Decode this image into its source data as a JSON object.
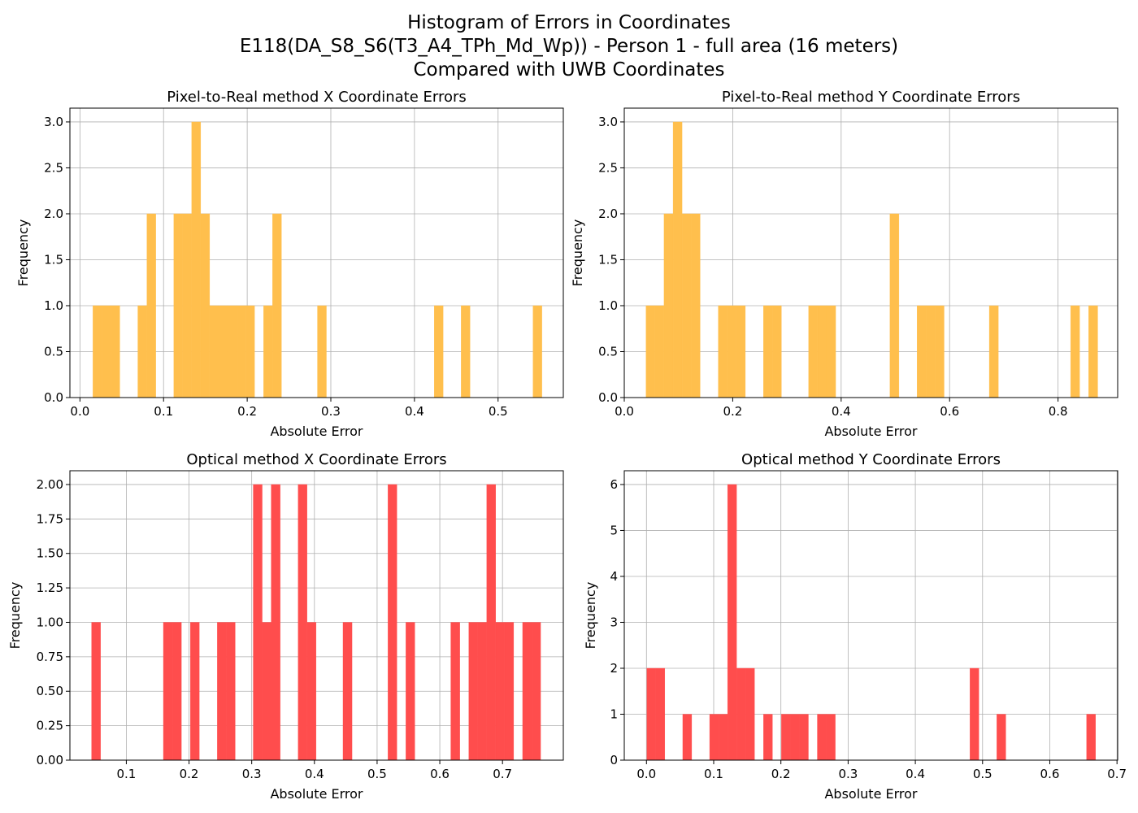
{
  "figure": {
    "title_lines": [
      "Histogram of Errors in Coordinates",
      "E118(DA_S8_S6(T3_A4_TPh_Md_Wp)) - Person 1 - full area (16 meters)",
      "Compared with UWB Coordinates"
    ]
  },
  "chart_data": [
    {
      "type": "bar",
      "title": "Pixel-to-Real method X Coordinate Errors",
      "xlabel": "Absolute Error",
      "ylabel": "Frequency",
      "color": "#FFBF4D",
      "xlim": [
        -0.012,
        0.578
      ],
      "ylim": [
        0,
        3.15
      ],
      "xticks": [
        0.0,
        0.1,
        0.2,
        0.3,
        0.4,
        0.5
      ],
      "xtick_labels": [
        "0.0",
        "0.1",
        "0.2",
        "0.3",
        "0.4",
        "0.5"
      ],
      "yticks": [
        0,
        0.5,
        1.0,
        1.5,
        2.0,
        2.5,
        3.0
      ],
      "ytick_labels": [
        "0.0",
        "0.5",
        "1.0",
        "1.5",
        "2.0",
        "2.5",
        "3.0"
      ],
      "grid": true,
      "bin_edges": [
        0.0155,
        0.0263,
        0.037,
        0.0477,
        0.0585,
        0.0692,
        0.08,
        0.0907,
        0.1014,
        0.1122,
        0.1229,
        0.1336,
        0.1444,
        0.1551,
        0.1659,
        0.1766,
        0.1873,
        0.1981,
        0.2088,
        0.2196,
        0.2303,
        0.241,
        0.2518,
        0.2625,
        0.2732,
        0.284,
        0.2947,
        0.3055,
        0.3162,
        0.3269,
        0.3377,
        0.3484,
        0.3592,
        0.3699,
        0.3806,
        0.3914,
        0.4021,
        0.4128,
        0.4236,
        0.4343,
        0.4451,
        0.4558,
        0.4665,
        0.4773,
        0.488,
        0.4987,
        0.5095,
        0.5202,
        0.531,
        0.5417,
        0.5524
      ],
      "counts": [
        1,
        1,
        1,
        0,
        0,
        1,
        2,
        0,
        0,
        2,
        2,
        3,
        2,
        1,
        1,
        1,
        1,
        1,
        0,
        1,
        2,
        0,
        0,
        0,
        0,
        1,
        0,
        0,
        0,
        0,
        0,
        0,
        0,
        0,
        0,
        0,
        0,
        0,
        1,
        0,
        0,
        1,
        0,
        0,
        0,
        0,
        0,
        0,
        0,
        1
      ]
    },
    {
      "type": "bar",
      "title": "Pixel-to-Real method Y Coordinate Errors",
      "xlabel": "Absolute Error",
      "ylabel": "Frequency",
      "color": "#FFBF4D",
      "xlim": [
        0.0,
        0.91
      ],
      "ylim": [
        0,
        3.15
      ],
      "xticks": [
        0.0,
        0.2,
        0.4,
        0.6,
        0.8
      ],
      "xtick_labels": [
        "0.0",
        "0.2",
        "0.4",
        "0.6",
        "0.8"
      ],
      "yticks": [
        0,
        0.5,
        1.0,
        1.5,
        2.0,
        2.5,
        3.0
      ],
      "ytick_labels": [
        "0.0",
        "0.5",
        "1.0",
        "1.5",
        "2.0",
        "2.5",
        "3.0"
      ],
      "grid": true,
      "bin_edges": [
        0.04,
        0.0567,
        0.0733,
        0.09,
        0.1066,
        0.1233,
        0.14,
        0.1566,
        0.1733,
        0.19,
        0.2066,
        0.2233,
        0.2399,
        0.2566,
        0.2733,
        0.2899,
        0.3066,
        0.3233,
        0.3399,
        0.3566,
        0.3733,
        0.3899,
        0.4066,
        0.4233,
        0.4399,
        0.4566,
        0.4732,
        0.4899,
        0.5066,
        0.5232,
        0.5399,
        0.5566,
        0.5732,
        0.5899,
        0.6066,
        0.6232,
        0.6399,
        0.6565,
        0.6732,
        0.6899,
        0.7065,
        0.7232,
        0.7399,
        0.7565,
        0.7732,
        0.7898,
        0.8065,
        0.8232,
        0.8398,
        0.8565,
        0.8732
      ],
      "counts": [
        1,
        1,
        2,
        3,
        2,
        2,
        0,
        0,
        1,
        1,
        1,
        0,
        0,
        1,
        1,
        0,
        0,
        0,
        1,
        1,
        1,
        0,
        0,
        0,
        0,
        0,
        0,
        2,
        0,
        0,
        1,
        1,
        1,
        0,
        0,
        0,
        0,
        0,
        1,
        0,
        0,
        0,
        0,
        0,
        0,
        0,
        0,
        1,
        0,
        1
      ]
    },
    {
      "type": "bar",
      "title": "Optical method X Coordinate Errors",
      "xlabel": "Absolute Error",
      "ylabel": "Frequency",
      "color": "#FF4D4D",
      "xlim": [
        0.01,
        0.797
      ],
      "ylim": [
        0,
        2.1
      ],
      "xticks": [
        0.1,
        0.2,
        0.3,
        0.4,
        0.5,
        0.6,
        0.7
      ],
      "xtick_labels": [
        "0.1",
        "0.2",
        "0.3",
        "0.4",
        "0.5",
        "0.6",
        "0.7"
      ],
      "yticks": [
        0,
        0.25,
        0.5,
        0.75,
        1.0,
        1.25,
        1.5,
        1.75,
        2.0
      ],
      "ytick_labels": [
        "0.00",
        "0.25",
        "0.50",
        "0.75",
        "1.00",
        "1.25",
        "1.50",
        "1.75",
        "2.00"
      ],
      "grid": true,
      "bin_edges": [
        0.0445,
        0.0589,
        0.0732,
        0.0875,
        0.1018,
        0.1162,
        0.1305,
        0.1448,
        0.1591,
        0.1735,
        0.1878,
        0.2021,
        0.2164,
        0.2308,
        0.2451,
        0.2594,
        0.2737,
        0.2881,
        0.3024,
        0.3167,
        0.331,
        0.3454,
        0.3597,
        0.374,
        0.3883,
        0.4027,
        0.417,
        0.4313,
        0.4456,
        0.46,
        0.4743,
        0.4886,
        0.5029,
        0.5173,
        0.5316,
        0.5459,
        0.5602,
        0.5746,
        0.5889,
        0.6032,
        0.6175,
        0.6319,
        0.6462,
        0.6605,
        0.6748,
        0.6892,
        0.7035,
        0.7178,
        0.7321,
        0.7465,
        0.7608
      ],
      "counts": [
        1,
        0,
        0,
        0,
        0,
        0,
        0,
        0,
        1,
        1,
        0,
        1,
        0,
        0,
        1,
        1,
        0,
        0,
        2,
        1,
        2,
        0,
        0,
        2,
        1,
        0,
        0,
        0,
        1,
        0,
        0,
        0,
        0,
        2,
        0,
        1,
        0,
        0,
        0,
        0,
        1,
        0,
        1,
        1,
        2,
        1,
        1,
        0,
        1,
        1
      ]
    },
    {
      "type": "bar",
      "title": "Optical method Y Coordinate Errors",
      "xlabel": "Absolute Error",
      "ylabel": "Frequency",
      "color": "#FF4D4D",
      "xlim": [
        -0.033,
        0.701
      ],
      "ylim": [
        0,
        6.3
      ],
      "xticks": [
        0.0,
        0.1,
        0.2,
        0.3,
        0.4,
        0.5,
        0.6,
        0.7
      ],
      "xtick_labels": [
        "0.0",
        "0.1",
        "0.2",
        "0.3",
        "0.4",
        "0.5",
        "0.6",
        "0.7"
      ],
      "yticks": [
        0,
        1,
        2,
        3,
        4,
        5,
        6
      ],
      "ytick_labels": [
        "0",
        "1",
        "2",
        "3",
        "4",
        "5",
        "6"
      ],
      "grid": true,
      "bin_edges": [
        0.0006,
        0.0139,
        0.0273,
        0.0406,
        0.054,
        0.0673,
        0.0807,
        0.094,
        0.1074,
        0.1207,
        0.1341,
        0.1474,
        0.1608,
        0.1741,
        0.1875,
        0.2008,
        0.2142,
        0.2275,
        0.2409,
        0.2542,
        0.2676,
        0.2809,
        0.2943,
        0.3076,
        0.321,
        0.3343,
        0.3477,
        0.361,
        0.3744,
        0.3877,
        0.4011,
        0.4144,
        0.4278,
        0.4411,
        0.4545,
        0.4678,
        0.4812,
        0.4945,
        0.5079,
        0.5212,
        0.5346,
        0.5479,
        0.5613,
        0.5746,
        0.588,
        0.6013,
        0.6147,
        0.628,
        0.6414,
        0.6547,
        0.6681
      ],
      "counts": [
        2,
        2,
        0,
        0,
        1,
        0,
        0,
        1,
        1,
        6,
        2,
        2,
        0,
        1,
        0,
        1,
        1,
        1,
        0,
        1,
        1,
        0,
        0,
        0,
        0,
        0,
        0,
        0,
        0,
        0,
        0,
        0,
        0,
        0,
        0,
        0,
        2,
        0,
        0,
        1,
        0,
        0,
        0,
        0,
        0,
        0,
        0,
        0,
        0,
        1
      ]
    }
  ]
}
